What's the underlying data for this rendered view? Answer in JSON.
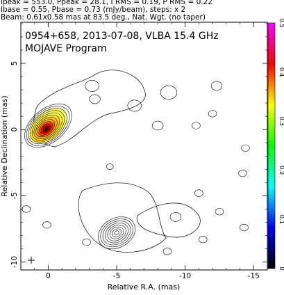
{
  "header": {
    "line1": "Ipeak = 553.0, Ppeak = 28.1, I RMS = 0.19, P RMS = 0.22",
    "line2": "Ibase = 0.55, Pbase = 0.73 (mJy/beam), steps: x 2",
    "line3": "Beam: 0.61x0.58 mas at 83.5 deg., Nat. Wgt. (no taper)"
  },
  "chart_data": {
    "type": "heatmap",
    "title": "0954+658, 2013-07-08, VLBA 15.4 GHz",
    "subtitle": "MOJAVE Program",
    "xlabel": "Relative R.A. (mas)",
    "ylabel": "Relative Declination (mas)",
    "xlim": [
      2,
      -16
    ],
    "ylim": [
      -10.6,
      8.1
    ],
    "x_ticks": [
      0,
      -5,
      -10,
      -15
    ],
    "y_ticks": [
      5,
      0,
      -5,
      -10
    ],
    "colorbar": {
      "ticks": [
        0.5,
        0.4,
        0.3,
        0.2,
        0.1,
        0
      ],
      "range": [
        0,
        0.5
      ],
      "colors": [
        "#ff00ff",
        "#ff0000",
        "#ffff00",
        "#00ff00",
        "#00ffff",
        "#0000ff",
        "#000000"
      ]
    },
    "beam": {
      "major_mas": 0.61,
      "minor_mas": 0.58,
      "pa_deg": 83.5
    },
    "core": {
      "x": 0,
      "y": 0.3,
      "major": 1.6,
      "minor": 1.0,
      "pa_deg": 40,
      "levels": 11
    },
    "southern_blob": {
      "x": -5.0,
      "y": -7.8,
      "major": 1.1,
      "minor": 0.85,
      "pa_deg": 30,
      "levels": 8
    },
    "islands": [
      {
        "x": -3.2,
        "y": 3.3,
        "r": 0.5
      },
      {
        "x": -3.4,
        "y": 2.3,
        "r": 0.4
      },
      {
        "x": -6.3,
        "y": 1.8,
        "r": 0.5
      },
      {
        "x": -8.8,
        "y": 2.8,
        "r": 0.6
      },
      {
        "x": -8.0,
        "y": 0.3,
        "r": 0.4
      },
      {
        "x": -12.3,
        "y": 3.3,
        "r": 0.4
      },
      {
        "x": -12.0,
        "y": 1.2,
        "r": 0.3
      },
      {
        "x": -10.8,
        "y": 0.3,
        "r": 0.3
      },
      {
        "x": -14.4,
        "y": -1.4,
        "r": 0.3
      },
      {
        "x": -14.2,
        "y": -3.3,
        "r": 0.3
      },
      {
        "x": -12.5,
        "y": -6.2,
        "r": 0.3
      },
      {
        "x": -9.3,
        "y": -6.6,
        "r": 0.4
      },
      {
        "x": -11.3,
        "y": -8.3,
        "r": 0.3
      },
      {
        "x": -14.3,
        "y": -7.4,
        "r": 0.3
      },
      {
        "x": -8.7,
        "y": -9.2,
        "r": 0.3
      },
      {
        "x": 0.1,
        "y": -7.2,
        "r": 0.3
      },
      {
        "x": -2.8,
        "y": -8.5,
        "r": 0.3
      },
      {
        "x": -11.0,
        "y": -4.8,
        "r": 0.3
      },
      {
        "x": -4.5,
        "y": -2.8,
        "r": 0.25
      },
      {
        "x": 1.6,
        "y": -6.0,
        "r": 0.3
      }
    ],
    "colormap_stops": [
      {
        "v": 0.0,
        "c": "#000000"
      },
      {
        "v": 0.2,
        "c": "#ff0000"
      },
      {
        "v": 0.4,
        "c": "#ffaa00"
      },
      {
        "v": 0.7,
        "c": "#ffff33"
      }
    ]
  }
}
